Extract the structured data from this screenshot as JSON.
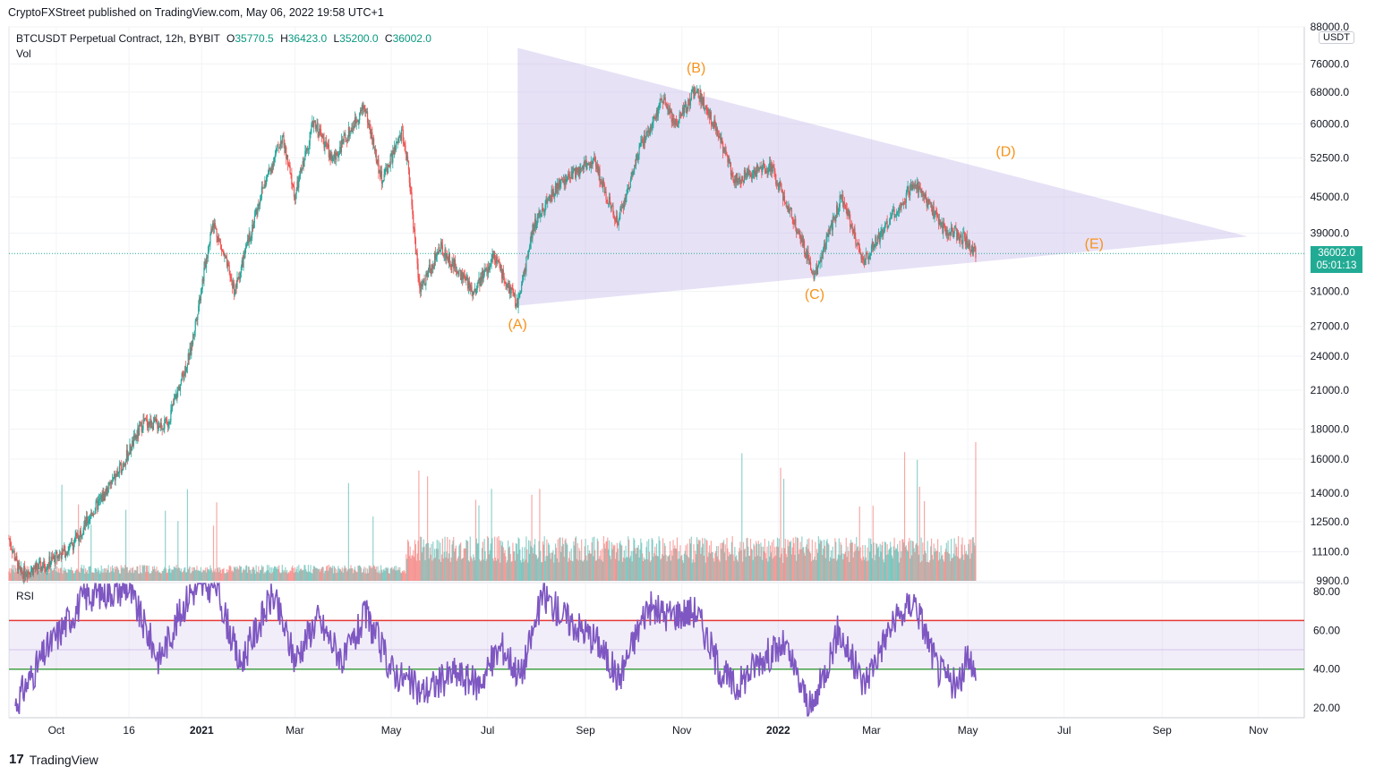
{
  "header": {
    "publisher_line": "CryptoFXStreet published on TradingView.com, May 06, 2022 19:58 UTC+1"
  },
  "legend": {
    "symbol": "BTCUSDT Perpetual Contract, 12h, BYBIT",
    "open_label": "O",
    "open": "35770.5",
    "high_label": "H",
    "high": "36423.0",
    "low_label": "L",
    "low": "35200.0",
    "close_label": "C",
    "close": "36002.0",
    "vol_label": "Vol",
    "rsi_label": "RSI"
  },
  "price_axis": {
    "currency": "USDT",
    "last_price": "36002.0",
    "countdown": "05:01:13"
  },
  "footer": {
    "brand": "TradingView"
  },
  "colors": {
    "triangle_fill": "#b9a8e6",
    "wave_labels": "#f7931a",
    "up": "#26a69a",
    "down": "#ef5350",
    "rsi_line": "#7e57c2",
    "rsi_upper": "#e53935",
    "rsi_lower": "#43a047",
    "price_tag": "#22ab94"
  },
  "chart_data": [
    {
      "type": "candlestick",
      "title": "BTCUSDT Perpetual Contract, 12h, BYBIT",
      "scale": "log",
      "ylim": [
        9900,
        88000
      ],
      "y_ticks": [
        "88000.0",
        "76000.0",
        "68000.0",
        "60000.0",
        "52500.0",
        "45000.0",
        "39000.0",
        "31000.0",
        "27000.0",
        "24000.0",
        "21000.0",
        "18000.0",
        "16000.0",
        "14000.0",
        "12500.0",
        "11100.0",
        "9900.0"
      ],
      "x_ticks": [
        "Oct",
        "16",
        "2021",
        "Mar",
        "May",
        "Jul",
        "Sep",
        "Nov",
        "2022",
        "Mar",
        "May",
        "Jul",
        "Sep",
        "Nov"
      ],
      "x_range": [
        "2020-09-01",
        "2022-11-30"
      ],
      "price_path": [
        {
          "date": "2020-09-01",
          "price": 11700
        },
        {
          "date": "2020-09-08",
          "price": 10200
        },
        {
          "date": "2020-09-23",
          "price": 10500
        },
        {
          "date": "2020-10-10",
          "price": 11300
        },
        {
          "date": "2020-10-25",
          "price": 13100
        },
        {
          "date": "2020-11-10",
          "price": 15300
        },
        {
          "date": "2020-11-25",
          "price": 18500
        },
        {
          "date": "2020-12-10",
          "price": 18300
        },
        {
          "date": "2020-12-25",
          "price": 24500
        },
        {
          "date": "2021-01-08",
          "price": 41000
        },
        {
          "date": "2021-01-22",
          "price": 31000
        },
        {
          "date": "2021-02-08",
          "price": 46000
        },
        {
          "date": "2021-02-21",
          "price": 57000
        },
        {
          "date": "2021-03-01",
          "price": 45000
        },
        {
          "date": "2021-03-13",
          "price": 61000
        },
        {
          "date": "2021-03-25",
          "price": 52000
        },
        {
          "date": "2021-04-14",
          "price": 64500
        },
        {
          "date": "2021-04-25",
          "price": 48000
        },
        {
          "date": "2021-05-08",
          "price": 58000
        },
        {
          "date": "2021-05-12",
          "price": 50000
        },
        {
          "date": "2021-05-19",
          "price": 31000
        },
        {
          "date": "2021-06-01",
          "price": 37000
        },
        {
          "date": "2021-06-22",
          "price": 31000
        },
        {
          "date": "2021-07-05",
          "price": 35500
        },
        {
          "date": "2021-07-20",
          "price": 29300
        },
        {
          "date": "2021-07-30",
          "price": 40000
        },
        {
          "date": "2021-08-14",
          "price": 47000
        },
        {
          "date": "2021-09-06",
          "price": 52000
        },
        {
          "date": "2021-09-21",
          "price": 40700
        },
        {
          "date": "2021-10-06",
          "price": 55000
        },
        {
          "date": "2021-10-20",
          "price": 66000
        },
        {
          "date": "2021-10-28",
          "price": 60000
        },
        {
          "date": "2021-11-10",
          "price": 69000
        },
        {
          "date": "2021-11-25",
          "price": 57000
        },
        {
          "date": "2021-12-04",
          "price": 48000
        },
        {
          "date": "2021-12-27",
          "price": 51000
        },
        {
          "date": "2022-01-10",
          "price": 41500
        },
        {
          "date": "2022-01-24",
          "price": 33000
        },
        {
          "date": "2022-02-10",
          "price": 45000
        },
        {
          "date": "2022-02-24",
          "price": 35000
        },
        {
          "date": "2022-03-28",
          "price": 47500
        },
        {
          "date": "2022-04-15",
          "price": 40000
        },
        {
          "date": "2022-04-30",
          "price": 38000
        },
        {
          "date": "2022-05-06",
          "price": 36002
        }
      ],
      "wave_labels": [
        {
          "text": "(A)",
          "date": "2021-07-20",
          "price": 29300
        },
        {
          "text": "(B)",
          "date": "2021-11-10",
          "price": 69000
        },
        {
          "text": "(C)",
          "date": "2022-01-24",
          "price": 33000
        },
        {
          "text": "(D)",
          "date": "2022-05-25",
          "price": 54000
        },
        {
          "text": "(E)",
          "date": "2022-07-20",
          "price": 37500
        }
      ],
      "triangle": [
        {
          "date": "2021-07-20",
          "price": 81000
        },
        {
          "date": "2022-10-25",
          "price": 38500
        },
        {
          "date": "2021-07-20",
          "price": 29300
        }
      ],
      "last_price": 36002.0
    },
    {
      "type": "bar",
      "title": "Vol",
      "series": "volume",
      "note": "volume bars rise after May 2021, largest spike on the last bar (May 2022)"
    },
    {
      "type": "line",
      "title": "RSI",
      "ylim": [
        15,
        85
      ],
      "y_ticks": [
        "80.00",
        "60.00",
        "40.00",
        "20.00"
      ],
      "upper_band": 65,
      "lower_band": 40,
      "mid_line": 50,
      "path": [
        {
          "date": "2020-09-05",
          "value": 22
        },
        {
          "date": "2020-09-25",
          "value": 50
        },
        {
          "date": "2020-10-20",
          "value": 78
        },
        {
          "date": "2020-11-15",
          "value": 82
        },
        {
          "date": "2020-12-05",
          "value": 45
        },
        {
          "date": "2020-12-25",
          "value": 80
        },
        {
          "date": "2021-01-10",
          "value": 84
        },
        {
          "date": "2021-01-25",
          "value": 42
        },
        {
          "date": "2021-02-15",
          "value": 78
        },
        {
          "date": "2021-03-01",
          "value": 45
        },
        {
          "date": "2021-03-15",
          "value": 66
        },
        {
          "date": "2021-04-01",
          "value": 44
        },
        {
          "date": "2021-04-15",
          "value": 68
        },
        {
          "date": "2021-05-01",
          "value": 40
        },
        {
          "date": "2021-05-20",
          "value": 28
        },
        {
          "date": "2021-06-10",
          "value": 38
        },
        {
          "date": "2021-06-25",
          "value": 32
        },
        {
          "date": "2021-07-10",
          "value": 52
        },
        {
          "date": "2021-07-22",
          "value": 36
        },
        {
          "date": "2021-08-05",
          "value": 78
        },
        {
          "date": "2021-08-20",
          "value": 66
        },
        {
          "date": "2021-09-08",
          "value": 55
        },
        {
          "date": "2021-09-22",
          "value": 35
        },
        {
          "date": "2021-10-10",
          "value": 72
        },
        {
          "date": "2021-10-22",
          "value": 68
        },
        {
          "date": "2021-11-10",
          "value": 70
        },
        {
          "date": "2021-11-25",
          "value": 40
        },
        {
          "date": "2021-12-05",
          "value": 30
        },
        {
          "date": "2021-12-20",
          "value": 45
        },
        {
          "date": "2022-01-05",
          "value": 52
        },
        {
          "date": "2022-01-22",
          "value": 18
        },
        {
          "date": "2022-02-08",
          "value": 60
        },
        {
          "date": "2022-02-24",
          "value": 32
        },
        {
          "date": "2022-03-12",
          "value": 60
        },
        {
          "date": "2022-03-28",
          "value": 76
        },
        {
          "date": "2022-04-12",
          "value": 40
        },
        {
          "date": "2022-04-25",
          "value": 30
        },
        {
          "date": "2022-05-02",
          "value": 50
        },
        {
          "date": "2022-05-06",
          "value": 34
        }
      ]
    }
  ]
}
